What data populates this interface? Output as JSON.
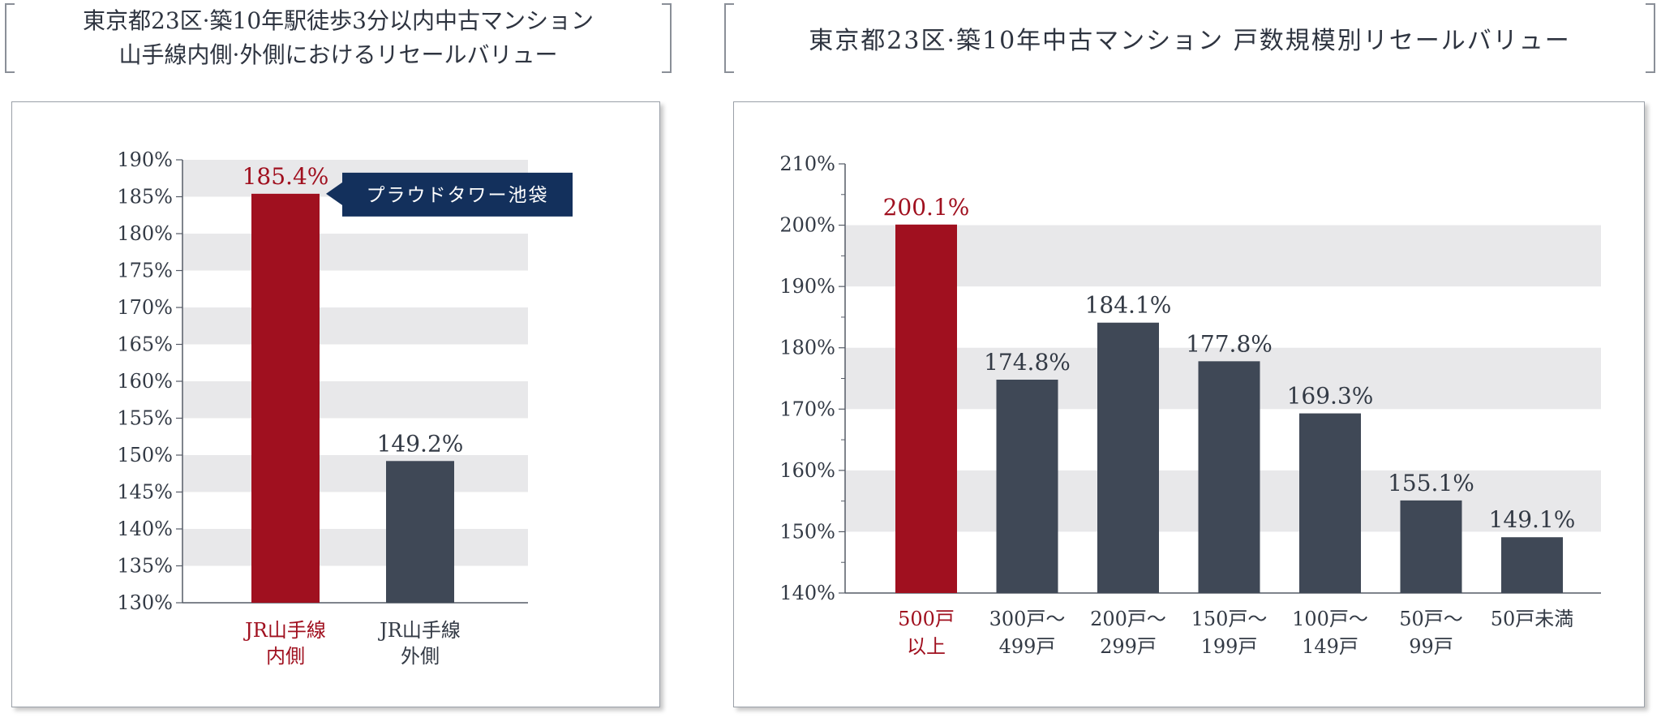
{
  "colors": {
    "highlight": "#a0101f",
    "bar": "#3f4856",
    "band": "#e8e8ea",
    "axis": "#555b66",
    "text": "#333a45",
    "callout_bg": "#13305c"
  },
  "left_title": {
    "line1": "東京都23区·築10年駅徒歩3分以内中古マンション",
    "line2": "山手線内側·外側におけるリセールバリュー"
  },
  "right_title": {
    "line1": "東京都23区·築10年中古マンション 戸数規模別リセールバリュー"
  },
  "chart_data": [
    {
      "type": "bar",
      "title": "東京都23区·築10年駅徒歩3分以内中古マンション 山手線内側·外側におけるリセールバリュー",
      "categories": [
        [
          "JR山手線",
          "内側"
        ],
        [
          "JR山手線",
          "外側"
        ]
      ],
      "values": [
        185.4,
        149.2
      ],
      "value_labels": [
        "185.4%",
        "149.2%"
      ],
      "highlight_index": 0,
      "ylim": [
        130,
        190
      ],
      "ytick_step": 5,
      "yticks": [
        "130%",
        "135%",
        "140%",
        "145%",
        "150%",
        "155%",
        "160%",
        "165%",
        "170%",
        "175%",
        "180%",
        "185%",
        "190%"
      ],
      "grid": "alternating bands",
      "annotation": {
        "text": "プラウドタワー池袋",
        "target_index": 0
      }
    },
    {
      "type": "bar",
      "title": "東京都23区·築10年中古マンション 戸数規模別リセールバリュー",
      "categories": [
        [
          "500戸",
          "以上"
        ],
        [
          "300戸〜",
          "499戸"
        ],
        [
          "200戸〜",
          "299戸"
        ],
        [
          "150戸〜",
          "199戸"
        ],
        [
          "100戸〜",
          "149戸"
        ],
        [
          "50戸〜",
          "99戸"
        ],
        [
          "50戸未満"
        ]
      ],
      "values": [
        200.1,
        174.8,
        184.1,
        177.8,
        169.3,
        155.1,
        149.1
      ],
      "value_labels": [
        "200.1%",
        "174.8%",
        "184.1%",
        "177.8%",
        "169.3%",
        "155.1%",
        "149.1%"
      ],
      "highlight_index": 0,
      "ylim": [
        140,
        210
      ],
      "ytick_step": 10,
      "yticks": [
        "140%",
        "150%",
        "160%",
        "170%",
        "180%",
        "190%",
        "200%",
        "210%"
      ],
      "grid": "alternating bands"
    }
  ]
}
